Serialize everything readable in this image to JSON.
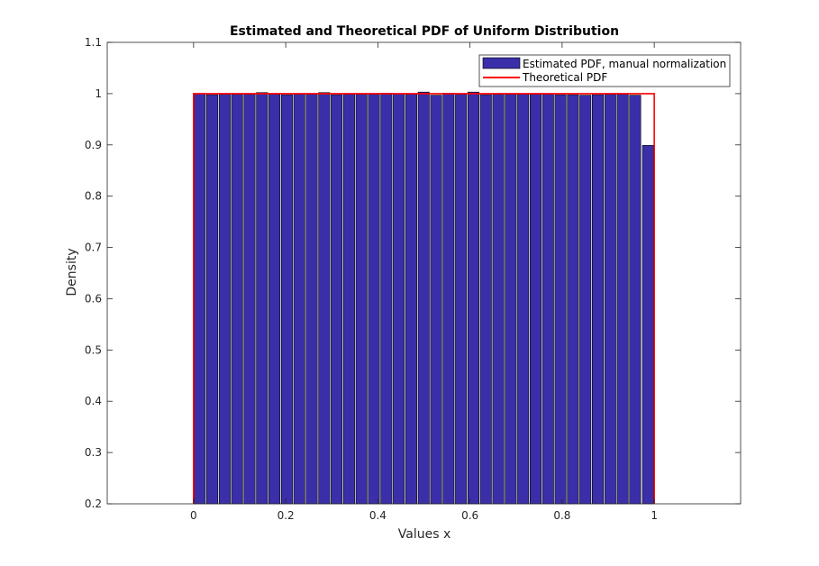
{
  "chart_data": {
    "type": "bar",
    "title": "Estimated and Theoretical PDF of Uniform Distribution",
    "xlabel": "Values x",
    "ylabel": "Density",
    "xlim": [
      -0.1875,
      1.1875
    ],
    "ylim": [
      0.2,
      1.1
    ],
    "xticks": [
      0,
      0.2,
      0.4,
      0.6,
      0.8,
      1
    ],
    "xtick_labels": [
      "0",
      "0.2",
      "0.4",
      "0.6",
      "0.8",
      "1"
    ],
    "yticks": [
      0.2,
      0.3,
      0.4,
      0.5,
      0.6,
      0.7,
      0.8,
      0.9,
      1,
      1.1
    ],
    "ytick_labels": [
      "0.2",
      "0.3",
      "0.4",
      "0.5",
      "0.6",
      "0.7",
      "0.8",
      "0.9",
      "1",
      "1.1"
    ],
    "bin_width": 0.027,
    "series": [
      {
        "name": "Estimated PDF, manual normalization",
        "kind": "bar",
        "color": "#3a2fa8",
        "x": [
          0.0135,
          0.0405,
          0.0675,
          0.0945,
          0.1215,
          0.1485,
          0.1755,
          0.2025,
          0.2295,
          0.2565,
          0.2835,
          0.3105,
          0.3375,
          0.3645,
          0.3915,
          0.4185,
          0.4455,
          0.4725,
          0.4995,
          0.5265,
          0.5535,
          0.5805,
          0.6075,
          0.6345,
          0.6615,
          0.6885,
          0.7155,
          0.7425,
          0.7695,
          0.7965,
          0.8235,
          0.8505,
          0.8775,
          0.9045,
          0.9315,
          0.9585,
          0.9865
        ],
        "values": [
          1.0,
          0.998,
          0.999,
          0.999,
          0.999,
          1.002,
          0.999,
          0.998,
          0.999,
          0.999,
          1.002,
          0.998,
          0.999,
          0.999,
          0.999,
          1.001,
          1.0,
          0.999,
          1.003,
          0.997,
          1.001,
          0.999,
          1.003,
          0.998,
          0.999,
          0.999,
          0.999,
          0.999,
          0.999,
          0.998,
          0.998,
          0.997,
          0.998,
          0.999,
          0.999,
          0.997,
          0.899
        ]
      },
      {
        "name": "Theoretical PDF",
        "kind": "line",
        "color": "#ff0000",
        "x": [
          0,
          0,
          1,
          1
        ],
        "values": [
          0.2,
          1,
          1,
          0.2
        ]
      }
    ],
    "legend_position": "top-right",
    "grid": false
  }
}
